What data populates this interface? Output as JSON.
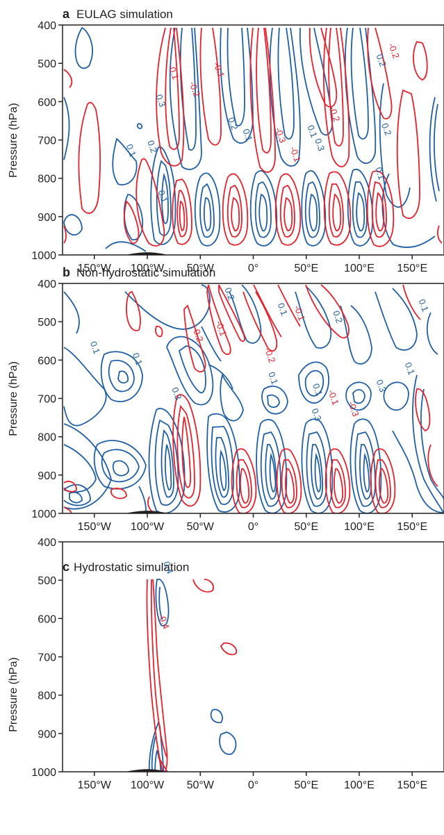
{
  "figure": {
    "colors": {
      "positive": "#e8202a",
      "negative": "#1f5fa8",
      "axis": "#231f20",
      "terrain": "#231f20"
    }
  },
  "chart_data": [
    {
      "id": "a",
      "type": "contour",
      "letter": "a",
      "title": "EULAG simulation",
      "ylabel": "Pressure (hPa)",
      "yticks": [
        "400",
        "500",
        "600",
        "700",
        "800",
        "900",
        "1000"
      ],
      "xticks": [
        "150°W",
        "100°W",
        "50°W",
        "0°",
        "50°E",
        "100°E",
        "150°E"
      ],
      "xlim": [
        -180,
        180
      ],
      "ylim": [
        1000,
        400
      ],
      "contour_labels": [
        {
          "text": "0.1",
          "x": -118,
          "y": 730
        },
        {
          "text": "0.2",
          "x": -98,
          "y": 720
        },
        {
          "text": "0.3",
          "x": -90,
          "y": 600
        },
        {
          "text": "0.1",
          "x": -88,
          "y": 850
        },
        {
          "text": "-0.1",
          "x": -78,
          "y": 525
        },
        {
          "text": "-0.2",
          "x": -58,
          "y": 570
        },
        {
          "text": "-0.1",
          "x": -35,
          "y": 520
        },
        {
          "text": "0.2",
          "x": -22,
          "y": 660
        },
        {
          "text": "0.1",
          "x": -8,
          "y": 690
        },
        {
          "text": "-0.3",
          "x": 23,
          "y": 690
        },
        {
          "text": "-0.1",
          "x": 37,
          "y": 740
        },
        {
          "text": "0.1",
          "x": 53,
          "y": 680
        },
        {
          "text": "0.3",
          "x": 60,
          "y": 715
        },
        {
          "text": "-0.2",
          "x": 74,
          "y": 635
        },
        {
          "text": "0.1",
          "x": 117,
          "y": 790
        },
        {
          "text": "0.2",
          "x": 118,
          "y": 495
        },
        {
          "text": "-0.2",
          "x": 130,
          "y": 470
        },
        {
          "text": "0.2",
          "x": 123,
          "y": 675
        }
      ]
    },
    {
      "id": "b",
      "type": "contour",
      "letter": "b",
      "title": "Non-hydrostatic simulation",
      "ylabel": "Pressure (hPa)",
      "yticks": [
        "400",
        "500",
        "600",
        "700",
        "800",
        "900",
        "1000"
      ],
      "xticks": [
        "150°W",
        "100°W",
        "50°W",
        "0°",
        "50°E",
        "100°E",
        "150°E"
      ],
      "xlim": [
        -180,
        180
      ],
      "ylim": [
        1000,
        400
      ],
      "contour_labels": [
        {
          "text": "0.1",
          "x": -152,
          "y": 570
        },
        {
          "text": "0.1",
          "x": -112,
          "y": 600
        },
        {
          "text": "0.3",
          "x": -75,
          "y": 690
        },
        {
          "text": "-0.1",
          "x": -33,
          "y": 520
        },
        {
          "text": "-0.2",
          "x": -55,
          "y": 535
        },
        {
          "text": "0.2",
          "x": -25,
          "y": 430
        },
        {
          "text": "0.1",
          "x": 16,
          "y": 650
        },
        {
          "text": "-0.2",
          "x": 13,
          "y": 590
        },
        {
          "text": "0.1",
          "x": 25,
          "y": 470
        },
        {
          "text": "-0.1",
          "x": 41,
          "y": 480
        },
        {
          "text": "0.3",
          "x": 57,
          "y": 745
        },
        {
          "text": "0.1",
          "x": 58,
          "y": 680
        },
        {
          "text": "-0.1",
          "x": 73,
          "y": 700
        },
        {
          "text": "-0.3",
          "x": 92,
          "y": 730
        },
        {
          "text": "0.2",
          "x": 77,
          "y": 490
        },
        {
          "text": "0.1",
          "x": 145,
          "y": 625
        },
        {
          "text": "0.1",
          "x": 158,
          "y": 460
        },
        {
          "text": "0.3",
          "x": 118,
          "y": 670
        }
      ]
    },
    {
      "id": "c",
      "type": "contour",
      "letter": "c",
      "title": "Hydrostatic simulation",
      "ylabel": "Pressure (hPa)",
      "yticks": [
        "400",
        "500",
        "600",
        "700",
        "800",
        "900",
        "1000"
      ],
      "xticks": [
        "150°W",
        "100°W",
        "50°W",
        "0°",
        "50°E",
        "100°E",
        "150°E"
      ],
      "xlim": [
        -180,
        180
      ],
      "ylim": [
        1000,
        400
      ],
      "contour_labels": [
        {
          "text": "0.4",
          "x": -83,
          "y": 470
        },
        {
          "text": "-0.4",
          "x": -87,
          "y": 610
        }
      ]
    }
  ]
}
